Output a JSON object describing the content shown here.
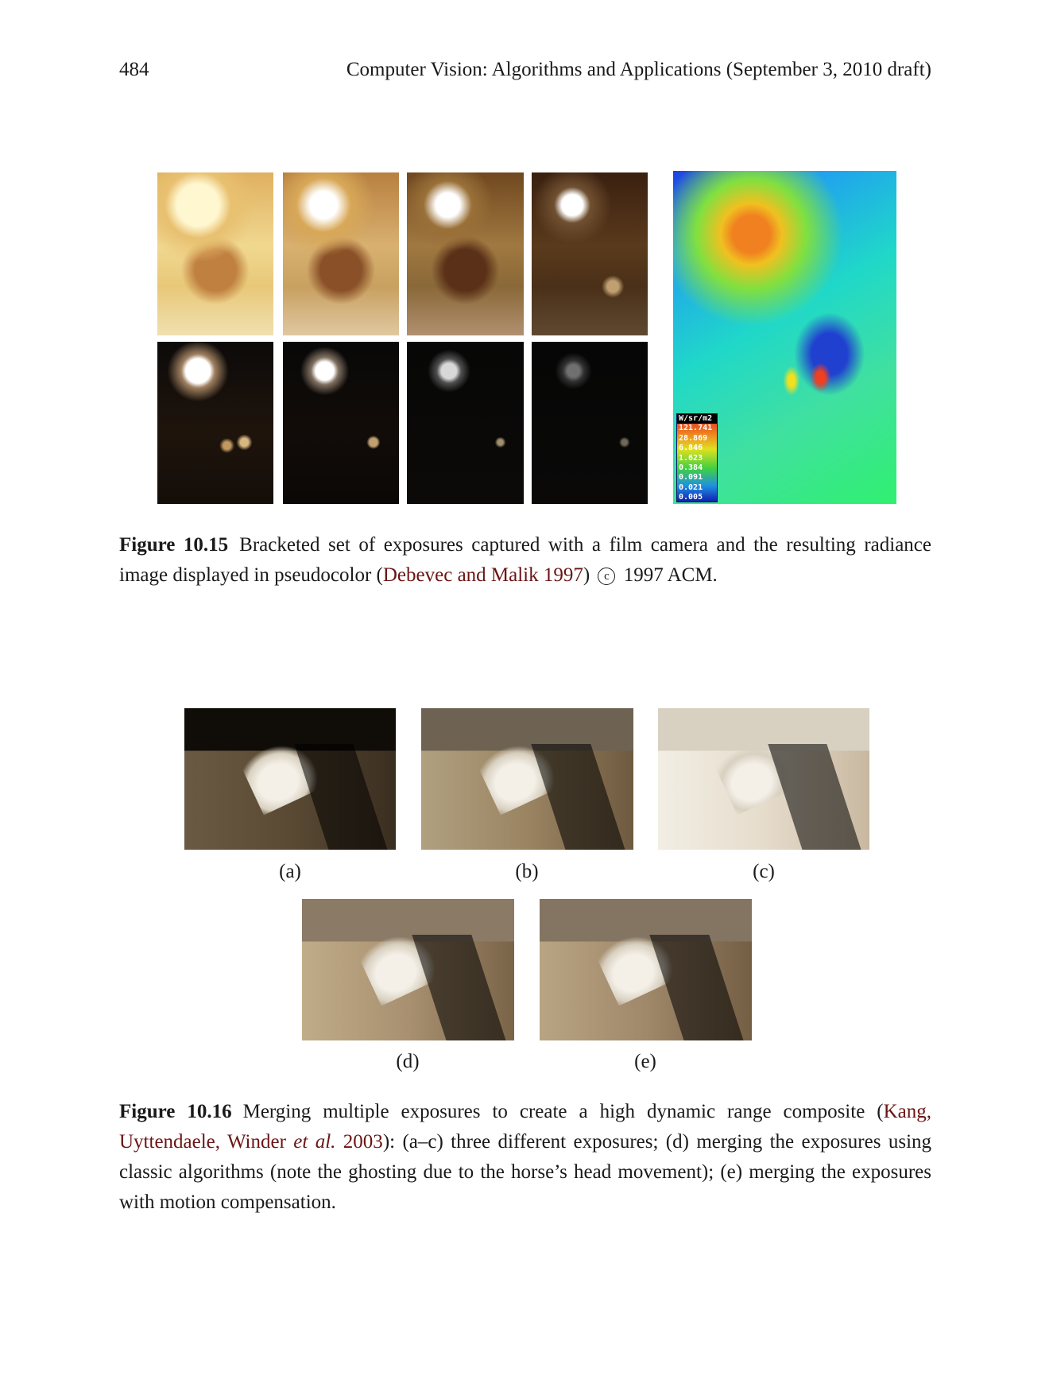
{
  "header": {
    "page_number": "484",
    "running_head": "Computer Vision: Algorithms and Applications (September 3, 2010 draft)"
  },
  "figure_10_15": {
    "legend": {
      "unit": "W/sr/m2",
      "values": [
        "121.741",
        "28.869",
        "6.846",
        "1.623",
        "0.384",
        "0.091",
        "0.021",
        "0.005"
      ]
    },
    "caption": {
      "number": "Figure 10.15",
      "text_before": "Bracketed set of exposures captured with a film camera and the resulting radiance image displayed in pseudocolor (",
      "citation": "Debevec and Malik 1997",
      "text_after": ")",
      "copyright_symbol": "c",
      "copyright_text": "1997 ACM."
    }
  },
  "figure_10_16": {
    "labels": {
      "a": "(a)",
      "b": "(b)",
      "c": "(c)",
      "d": "(d)",
      "e": "(e)"
    },
    "caption": {
      "number": "Figure 10.16",
      "text_before": "Merging multiple exposures to create a high dynamic range composite (",
      "citation_part1": "Kang, Uyttendaele, Winder ",
      "citation_etal": "et al.",
      "citation_year": " 2003",
      "text_after": "): (a–c) three different exposures; (d) merging the exposures using classic algorithms (note the ghosting due to the horse’s head movement); (e) merging the exposures with motion compensation."
    }
  }
}
